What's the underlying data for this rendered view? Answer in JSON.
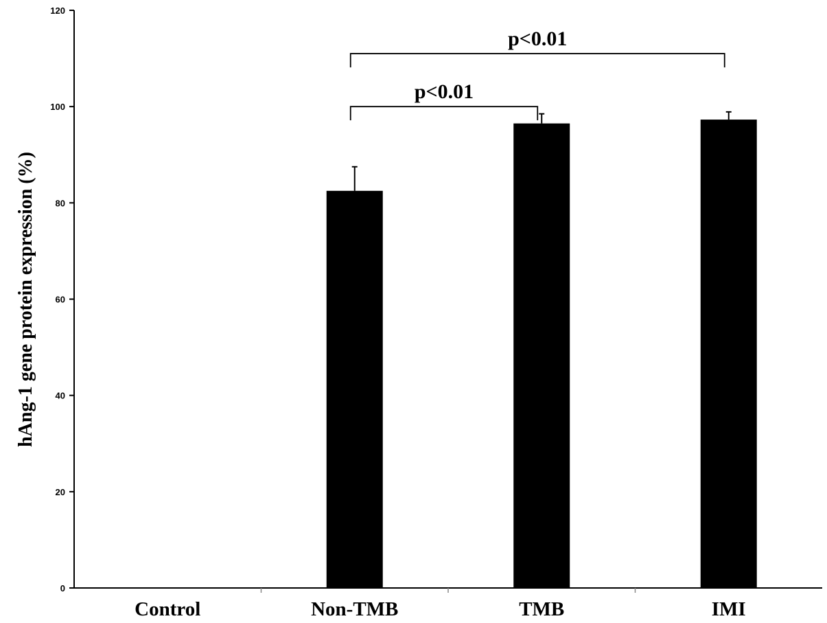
{
  "chart_data": {
    "type": "bar",
    "categories": [
      "Control",
      "Non-TMB",
      "TMB",
      "IMI"
    ],
    "values": [
      0,
      82.5,
      96.5,
      97.3
    ],
    "error": [
      0,
      5,
      2,
      1.6
    ],
    "ylabel": "hAng-1 gene protein expression (%)",
    "xlabel": "",
    "ylim": [
      0,
      120
    ],
    "yticks": [
      0,
      20,
      40,
      60,
      80,
      100,
      120
    ],
    "bar_color": "#000000",
    "grid": false,
    "annotations": [
      {
        "text": "p<0.01",
        "from": "Non-TMB",
        "to": "TMB",
        "bracket_y": 100
      },
      {
        "text": "p<0.01",
        "from": "Non-TMB",
        "to": "IMI",
        "bracket_y": 111
      }
    ]
  }
}
